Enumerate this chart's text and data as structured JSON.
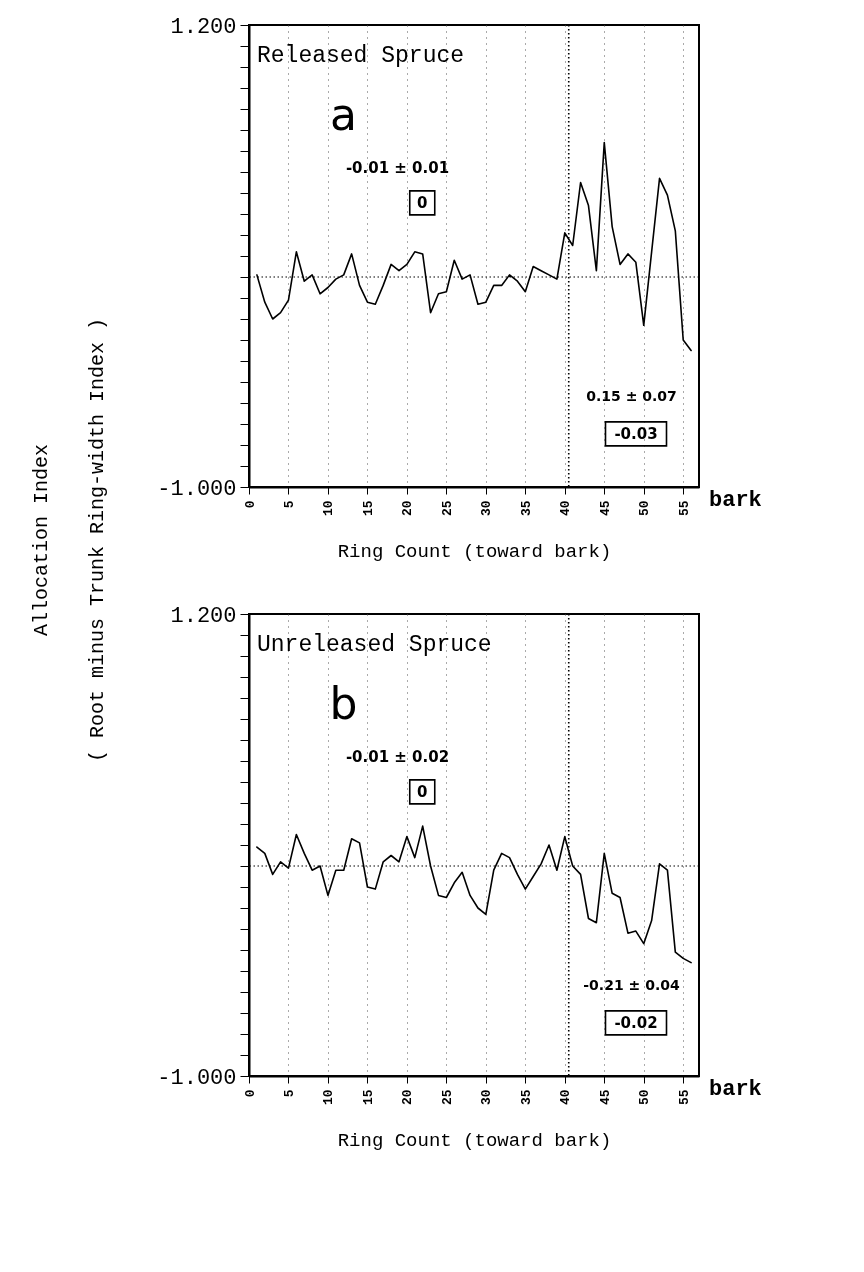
{
  "chart_data": [
    {
      "type": "line",
      "title": "Released Spruce",
      "xlabel": "Ring Count (toward bark)",
      "ylabel": "Allocation Index\n( Root minus Trunk Ring-width Index )",
      "x": [
        1,
        2,
        3,
        4,
        5,
        6,
        7,
        8,
        9,
        10,
        11,
        12,
        13,
        14,
        15,
        16,
        17,
        18,
        19,
        20,
        21,
        22,
        23,
        24,
        25,
        26,
        27,
        28,
        29,
        30,
        31,
        32,
        33,
        34,
        35,
        36,
        37,
        38,
        39,
        40,
        41,
        42,
        43,
        44,
        45,
        46,
        47,
        48,
        49,
        50,
        51,
        52,
        53,
        54,
        55,
        56
      ],
      "series": [
        {
          "color": "#000000",
          "values": [
            0.01,
            -0.12,
            -0.2,
            -0.17,
            -0.11,
            0.12,
            -0.02,
            0.01,
            -0.08,
            -0.05,
            -0.01,
            0.01,
            0.11,
            -0.04,
            -0.12,
            -0.13,
            -0.04,
            0.06,
            0.03,
            0.06,
            0.12,
            0.11,
            -0.17,
            -0.08,
            -0.07,
            0.08,
            -0.01,
            0.01,
            -0.13,
            -0.12,
            -0.04,
            -0.04,
            0.01,
            -0.02,
            -0.07,
            0.05,
            0.03,
            0.01,
            -0.01,
            0.21,
            0.15,
            0.45,
            0.34,
            0.03,
            0.64,
            0.24,
            0.06,
            0.11,
            0.07,
            -0.23,
            0.12,
            0.47,
            0.39,
            0.22,
            -0.3,
            -0.35
          ]
        }
      ],
      "xlim": [
        0,
        57
      ],
      "ylim": [
        -1,
        1.2
      ],
      "xticks": [
        0,
        5,
        10,
        15,
        20,
        25,
        30,
        35,
        40,
        45,
        50,
        55
      ],
      "yticks": [
        {
          "value": -1,
          "label": "-1.000"
        },
        {
          "value": -0.9,
          "label": null
        },
        {
          "value": -0.8,
          "label": null
        },
        {
          "value": -0.7,
          "label": null
        },
        {
          "value": -0.6,
          "label": null
        },
        {
          "value": -0.5,
          "label": null
        },
        {
          "value": -0.4,
          "label": null
        },
        {
          "value": -0.3,
          "label": null
        },
        {
          "value": -0.2,
          "label": null
        },
        {
          "value": -0.1,
          "label": null
        },
        {
          "value": 0,
          "label": null
        },
        {
          "value": 0.1,
          "label": null
        },
        {
          "value": 0.2,
          "label": null
        },
        {
          "value": 0.3,
          "label": null
        },
        {
          "value": 0.4,
          "label": null
        },
        {
          "value": 0.5,
          "label": null
        },
        {
          "value": 0.6,
          "label": null
        },
        {
          "value": 0.7,
          "label": null
        },
        {
          "value": 0.8,
          "label": null
        },
        {
          "value": 0.9,
          "label": null
        },
        {
          "value": 1,
          "label": null
        },
        {
          "value": 1.1,
          "label": null
        },
        {
          "value": 1.2,
          "label": "1.200"
        }
      ],
      "grid": "x",
      "line_style": "solid",
      "ref_lines": [
        {
          "axis": "x",
          "value": 40.5,
          "line_style": "dotted"
        },
        {
          "axis": "y",
          "value": 0,
          "line_style": "dotted"
        }
      ],
      "annotations": [
        "a",
        "-0.01 ± 0.01",
        "0",
        "0.15 ± 0.07",
        "-0.03",
        "bark"
      ]
    },
    {
      "type": "line",
      "title": "Unreleased Spruce",
      "xlabel": "Ring Count (toward bark)",
      "x": [
        1,
        2,
        3,
        4,
        5,
        6,
        7,
        8,
        9,
        10,
        11,
        12,
        13,
        14,
        15,
        16,
        17,
        18,
        19,
        20,
        21,
        22,
        23,
        24,
        25,
        26,
        27,
        28,
        29,
        30,
        31,
        32,
        33,
        34,
        35,
        36,
        37,
        38,
        39,
        40,
        41,
        42,
        43,
        44,
        45,
        46,
        47,
        48,
        49,
        50,
        51,
        52,
        53,
        54,
        55,
        56
      ],
      "series": [
        {
          "color": "#000000",
          "values": [
            0.09,
            0.06,
            -0.04,
            0.02,
            -0.01,
            0.15,
            0.06,
            -0.02,
            0.0,
            -0.14,
            -0.02,
            -0.02,
            0.13,
            0.11,
            -0.1,
            -0.11,
            0.02,
            0.05,
            0.02,
            0.14,
            0.04,
            0.19,
            0.0,
            -0.14,
            -0.15,
            -0.08,
            -0.03,
            -0.14,
            -0.2,
            -0.23,
            -0.02,
            0.06,
            0.04,
            -0.04,
            -0.11,
            -0.05,
            0.01,
            0.1,
            -0.02,
            0.14,
            0.0,
            -0.04,
            -0.25,
            -0.27,
            0.06,
            -0.13,
            -0.15,
            -0.32,
            -0.31,
            -0.37,
            -0.26,
            0.01,
            -0.02,
            -0.41,
            -0.44,
            -0.46
          ]
        }
      ],
      "xlim": [
        0,
        57
      ],
      "ylim": [
        -1,
        1.2
      ],
      "xticks": [
        0,
        5,
        10,
        15,
        20,
        25,
        30,
        35,
        40,
        45,
        50,
        55
      ],
      "yticks": [
        {
          "value": -1,
          "label": "-1.000"
        },
        {
          "value": -0.9,
          "label": null
        },
        {
          "value": -0.8,
          "label": null
        },
        {
          "value": -0.7,
          "label": null
        },
        {
          "value": -0.6,
          "label": null
        },
        {
          "value": -0.5,
          "label": null
        },
        {
          "value": -0.4,
          "label": null
        },
        {
          "value": -0.3,
          "label": null
        },
        {
          "value": -0.2,
          "label": null
        },
        {
          "value": -0.1,
          "label": null
        },
        {
          "value": 0,
          "label": null
        },
        {
          "value": 0.1,
          "label": null
        },
        {
          "value": 0.2,
          "label": null
        },
        {
          "value": 0.3,
          "label": null
        },
        {
          "value": 0.4,
          "label": null
        },
        {
          "value": 0.5,
          "label": null
        },
        {
          "value": 0.6,
          "label": null
        },
        {
          "value": 0.7,
          "label": null
        },
        {
          "value": 0.8,
          "label": null
        },
        {
          "value": 0.9,
          "label": null
        },
        {
          "value": 1,
          "label": null
        },
        {
          "value": 1.1,
          "label": null
        },
        {
          "value": 1.2,
          "label": "1.200"
        }
      ],
      "grid": "x",
      "line_style": "solid",
      "ref_lines": [
        {
          "axis": "x",
          "value": 40.5,
          "line_style": "dotted"
        },
        {
          "axis": "y",
          "value": 0,
          "line_style": "dotted"
        }
      ],
      "annotations": [
        "b",
        "-0.01 ± 0.02",
        "0",
        "-0.21 ± 0.04",
        "-0.02",
        "bark"
      ]
    }
  ]
}
